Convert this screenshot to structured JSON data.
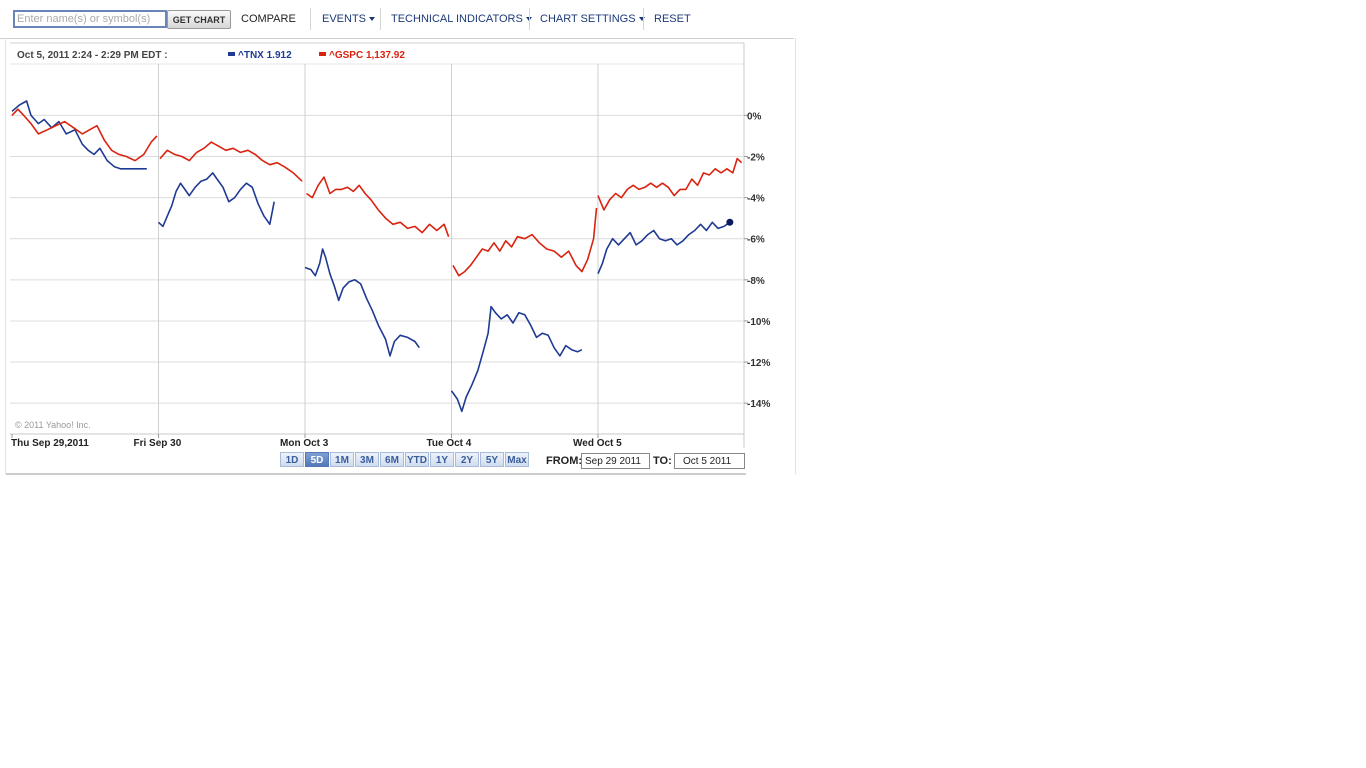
{
  "toolbar": {
    "search_placeholder": "Enter name(s) or symbol(s)",
    "get_chart_label": "GET CHART",
    "compare_label": "COMPARE",
    "events_label": "EVENTS",
    "technical_indicators_label": "TECHNICAL INDICATORS",
    "chart_settings_label": "CHART SETTINGS",
    "reset_label": "RESET"
  },
  "range": {
    "buttons": [
      "1D",
      "5D",
      "1M",
      "3M",
      "6M",
      "YTD",
      "1Y",
      "2Y",
      "5Y",
      "Max"
    ],
    "active": "5D",
    "from_label": "FROM:",
    "from_value": "Sep 29 2011",
    "to_label": "TO:",
    "to_value": "Oct 5 2011"
  },
  "chart_data": {
    "type": "line",
    "header_text": "Oct 5, 2011 2:24 - 2:29 PM EDT :",
    "copyright": "© 2011 Yahoo! Inc.",
    "y_axis": {
      "unit": "%",
      "ylim": [
        -15.5,
        2.5
      ],
      "ticks": [
        0,
        -2,
        -4,
        -6,
        -8,
        -10,
        -12,
        -14
      ],
      "tick_labels": [
        "0%",
        "-2%",
        "-4%",
        "-6%",
        "-8%",
        "-10%",
        "-12%",
        "-14%"
      ],
      "position": "right"
    },
    "x_axis": {
      "xlim": [
        0,
        5
      ],
      "day_labels": [
        "Thu Sep 29,2011",
        "Fri Sep 30",
        "Mon Oct 3",
        "Tue Oct 4",
        "Wed Oct 5"
      ],
      "day_starts": [
        0,
        1,
        2,
        3,
        4
      ]
    },
    "grid": true,
    "legend_placement": "top",
    "series": [
      {
        "name": "^TNX",
        "legend_value": "1.912",
        "color": "#1f3a93",
        "end_marker": true,
        "segments": [
          [
            [
              0.0,
              0.2
            ],
            [
              0.05,
              0.5
            ],
            [
              0.1,
              0.7
            ],
            [
              0.13,
              0.0
            ],
            [
              0.18,
              -0.4
            ],
            [
              0.22,
              -0.2
            ],
            [
              0.27,
              -0.6
            ],
            [
              0.32,
              -0.3
            ],
            [
              0.37,
              -0.9
            ],
            [
              0.43,
              -0.7
            ],
            [
              0.48,
              -1.4
            ],
            [
              0.52,
              -1.7
            ],
            [
              0.56,
              -1.9
            ],
            [
              0.6,
              -1.6
            ],
            [
              0.65,
              -2.2
            ],
            [
              0.7,
              -2.5
            ],
            [
              0.74,
              -2.6
            ],
            [
              0.8,
              -2.6
            ],
            [
              0.85,
              -2.6
            ],
            [
              0.92,
              -2.6
            ]
          ],
          [
            [
              1.0,
              -5.2
            ],
            [
              1.03,
              -5.4
            ],
            [
              1.06,
              -4.9
            ],
            [
              1.09,
              -4.4
            ],
            [
              1.12,
              -3.7
            ],
            [
              1.15,
              -3.3
            ],
            [
              1.18,
              -3.6
            ],
            [
              1.21,
              -3.9
            ],
            [
              1.25,
              -3.5
            ],
            [
              1.29,
              -3.2
            ],
            [
              1.33,
              -3.1
            ],
            [
              1.37,
              -2.8
            ],
            [
              1.4,
              -3.1
            ],
            [
              1.44,
              -3.5
            ],
            [
              1.48,
              -4.2
            ],
            [
              1.52,
              -4.0
            ],
            [
              1.56,
              -3.6
            ],
            [
              1.6,
              -3.3
            ],
            [
              1.64,
              -3.5
            ],
            [
              1.68,
              -4.3
            ],
            [
              1.72,
              -4.9
            ],
            [
              1.76,
              -5.3
            ],
            [
              1.79,
              -4.2
            ]
          ],
          [
            [
              2.0,
              -7.4
            ],
            [
              2.04,
              -7.5
            ],
            [
              2.07,
              -7.8
            ],
            [
              2.1,
              -7.2
            ],
            [
              2.12,
              -6.5
            ],
            [
              2.14,
              -6.9
            ],
            [
              2.17,
              -7.7
            ],
            [
              2.2,
              -8.3
            ],
            [
              2.23,
              -9.0
            ],
            [
              2.26,
              -8.4
            ],
            [
              2.3,
              -8.1
            ],
            [
              2.34,
              -8.0
            ],
            [
              2.38,
              -8.2
            ],
            [
              2.42,
              -8.9
            ],
            [
              2.46,
              -9.5
            ],
            [
              2.5,
              -10.2
            ],
            [
              2.55,
              -10.9
            ],
            [
              2.58,
              -11.7
            ],
            [
              2.61,
              -11.0
            ],
            [
              2.65,
              -10.7
            ],
            [
              2.7,
              -10.8
            ],
            [
              2.75,
              -11.0
            ],
            [
              2.78,
              -11.3
            ]
          ],
          [
            [
              3.0,
              -13.4
            ],
            [
              3.04,
              -13.8
            ],
            [
              3.07,
              -14.4
            ],
            [
              3.1,
              -13.7
            ],
            [
              3.14,
              -13.1
            ],
            [
              3.18,
              -12.4
            ],
            [
              3.22,
              -11.4
            ],
            [
              3.25,
              -10.6
            ],
            [
              3.27,
              -9.3
            ],
            [
              3.3,
              -9.6
            ],
            [
              3.34,
              -9.9
            ],
            [
              3.38,
              -9.7
            ],
            [
              3.42,
              -10.1
            ],
            [
              3.46,
              -9.6
            ],
            [
              3.5,
              -9.7
            ],
            [
              3.54,
              -10.2
            ],
            [
              3.58,
              -10.8
            ],
            [
              3.62,
              -10.6
            ],
            [
              3.66,
              -10.7
            ],
            [
              3.7,
              -11.3
            ],
            [
              3.74,
              -11.7
            ],
            [
              3.78,
              -11.2
            ],
            [
              3.82,
              -11.4
            ],
            [
              3.86,
              -11.5
            ],
            [
              3.89,
              -11.4
            ]
          ],
          [
            [
              4.0,
              -7.7
            ],
            [
              4.03,
              -7.2
            ],
            [
              4.06,
              -6.5
            ],
            [
              4.1,
              -6.0
            ],
            [
              4.14,
              -6.3
            ],
            [
              4.18,
              -6.0
            ],
            [
              4.22,
              -5.7
            ],
            [
              4.26,
              -6.3
            ],
            [
              4.3,
              -6.1
            ],
            [
              4.34,
              -5.8
            ],
            [
              4.38,
              -5.6
            ],
            [
              4.42,
              -6.0
            ],
            [
              4.46,
              -6.1
            ],
            [
              4.5,
              -6.0
            ],
            [
              4.54,
              -6.3
            ],
            [
              4.58,
              -6.1
            ],
            [
              4.62,
              -5.8
            ],
            [
              4.66,
              -5.6
            ],
            [
              4.7,
              -5.3
            ],
            [
              4.74,
              -5.6
            ],
            [
              4.78,
              -5.2
            ],
            [
              4.82,
              -5.5
            ],
            [
              4.86,
              -5.4
            ],
            [
              4.9,
              -5.2
            ]
          ]
        ]
      },
      {
        "name": "^GSPC",
        "legend_value": "1,137.92",
        "color": "#d9230f",
        "end_marker": false,
        "segments": [
          [
            [
              0.0,
              0.0
            ],
            [
              0.04,
              0.3
            ],
            [
              0.08,
              0.0
            ],
            [
              0.13,
              -0.4
            ],
            [
              0.18,
              -0.9
            ],
            [
              0.24,
              -0.7
            ],
            [
              0.3,
              -0.5
            ],
            [
              0.36,
              -0.3
            ],
            [
              0.42,
              -0.6
            ],
            [
              0.48,
              -0.9
            ],
            [
              0.53,
              -0.7
            ],
            [
              0.58,
              -0.5
            ],
            [
              0.63,
              -1.2
            ],
            [
              0.68,
              -1.7
            ],
            [
              0.73,
              -1.9
            ],
            [
              0.78,
              -2.0
            ],
            [
              0.84,
              -2.2
            ],
            [
              0.9,
              -1.9
            ],
            [
              0.95,
              -1.3
            ],
            [
              0.99,
              -1.0
            ]
          ],
          [
            [
              1.01,
              -2.1
            ],
            [
              1.06,
              -1.7
            ],
            [
              1.11,
              -1.9
            ],
            [
              1.16,
              -2.0
            ],
            [
              1.21,
              -2.2
            ],
            [
              1.26,
              -1.8
            ],
            [
              1.31,
              -1.6
            ],
            [
              1.36,
              -1.3
            ],
            [
              1.41,
              -1.5
            ],
            [
              1.46,
              -1.7
            ],
            [
              1.51,
              -1.6
            ],
            [
              1.56,
              -1.8
            ],
            [
              1.61,
              -1.7
            ],
            [
              1.66,
              -1.9
            ],
            [
              1.71,
              -2.2
            ],
            [
              1.76,
              -2.4
            ],
            [
              1.81,
              -2.3
            ],
            [
              1.86,
              -2.5
            ],
            [
              1.92,
              -2.8
            ],
            [
              1.98,
              -3.2
            ]
          ],
          [
            [
              2.01,
              -3.8
            ],
            [
              2.05,
              -4.0
            ],
            [
              2.09,
              -3.4
            ],
            [
              2.13,
              -3.0
            ],
            [
              2.17,
              -3.8
            ],
            [
              2.21,
              -3.6
            ],
            [
              2.25,
              -3.6
            ],
            [
              2.29,
              -3.5
            ],
            [
              2.33,
              -3.7
            ],
            [
              2.37,
              -3.4
            ],
            [
              2.41,
              -3.8
            ],
            [
              2.45,
              -4.1
            ],
            [
              2.5,
              -4.6
            ],
            [
              2.55,
              -5.0
            ],
            [
              2.6,
              -5.3
            ],
            [
              2.65,
              -5.2
            ],
            [
              2.7,
              -5.5
            ],
            [
              2.75,
              -5.4
            ],
            [
              2.8,
              -5.7
            ],
            [
              2.85,
              -5.3
            ],
            [
              2.9,
              -5.6
            ],
            [
              2.95,
              -5.3
            ],
            [
              2.98,
              -5.9
            ]
          ],
          [
            [
              3.01,
              -7.3
            ],
            [
              3.05,
              -7.8
            ],
            [
              3.09,
              -7.6
            ],
            [
              3.13,
              -7.3
            ],
            [
              3.17,
              -6.9
            ],
            [
              3.21,
              -6.5
            ],
            [
              3.25,
              -6.6
            ],
            [
              3.29,
              -6.2
            ],
            [
              3.33,
              -6.6
            ],
            [
              3.37,
              -6.1
            ],
            [
              3.41,
              -6.4
            ],
            [
              3.45,
              -5.9
            ],
            [
              3.5,
              -6.0
            ],
            [
              3.55,
              -5.8
            ],
            [
              3.6,
              -6.2
            ],
            [
              3.65,
              -6.5
            ],
            [
              3.7,
              -6.6
            ],
            [
              3.75,
              -6.9
            ],
            [
              3.8,
              -6.6
            ],
            [
              3.85,
              -7.3
            ],
            [
              3.89,
              -7.6
            ],
            [
              3.93,
              -7.0
            ],
            [
              3.97,
              -6.0
            ],
            [
              3.99,
              -4.5
            ]
          ],
          [
            [
              4.0,
              -3.9
            ],
            [
              4.04,
              -4.6
            ],
            [
              4.08,
              -4.1
            ],
            [
              4.12,
              -3.8
            ],
            [
              4.16,
              -4.0
            ],
            [
              4.2,
              -3.6
            ],
            [
              4.24,
              -3.4
            ],
            [
              4.28,
              -3.6
            ],
            [
              4.32,
              -3.5
            ],
            [
              4.36,
              -3.3
            ],
            [
              4.4,
              -3.5
            ],
            [
              4.44,
              -3.3
            ],
            [
              4.48,
              -3.5
            ],
            [
              4.52,
              -3.9
            ],
            [
              4.56,
              -3.6
            ],
            [
              4.6,
              -3.6
            ],
            [
              4.64,
              -3.1
            ],
            [
              4.68,
              -3.4
            ],
            [
              4.72,
              -2.8
            ],
            [
              4.76,
              -2.9
            ],
            [
              4.8,
              -2.6
            ],
            [
              4.84,
              -2.8
            ],
            [
              4.88,
              -2.6
            ],
            [
              4.92,
              -2.8
            ],
            [
              4.95,
              -2.1
            ],
            [
              4.98,
              -2.3
            ]
          ]
        ]
      }
    ]
  },
  "colors": {
    "toolbar_link": "#1c3a78",
    "grid": "#d9d9d9",
    "tnx": "#1f3a93",
    "gspc": "#d9230f"
  }
}
